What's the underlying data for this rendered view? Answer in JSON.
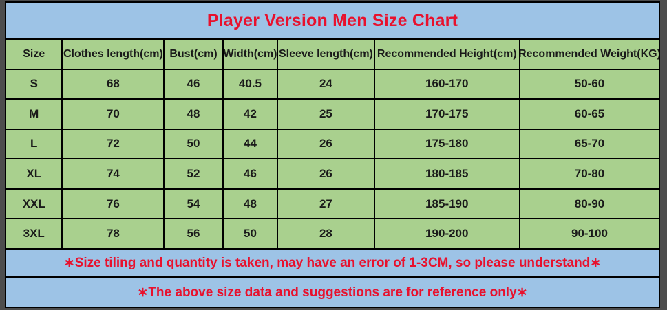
{
  "chart_data": {
    "type": "table",
    "title": "Player Version Men Size Chart",
    "columns": [
      "Size",
      "Clothes length(cm)",
      "Bust(cm)",
      "Width(cm)",
      "Sleeve length(cm)",
      "Recommended Height(cm)",
      "Recommended Weight(KG)"
    ],
    "rows": [
      [
        "S",
        "68",
        "46",
        "40.5",
        "24",
        "160-170",
        "50-60"
      ],
      [
        "M",
        "70",
        "48",
        "42",
        "25",
        "170-175",
        "60-65"
      ],
      [
        "L",
        "72",
        "50",
        "44",
        "26",
        "175-180",
        "65-70"
      ],
      [
        "XL",
        "74",
        "52",
        "46",
        "26",
        "180-185",
        "70-80"
      ],
      [
        "XXL",
        "76",
        "54",
        "48",
        "27",
        "185-190",
        "80-90"
      ],
      [
        "3XL",
        "78",
        "56",
        "50",
        "28",
        "190-200",
        "90-100"
      ]
    ],
    "notes": [
      "∗Size tiling and quantity is taken, may have an error of 1-3CM, so please understand∗",
      "∗The above size data and suggestions are for reference only∗"
    ],
    "layout_hints": {
      "grid": "on",
      "title_position": "top-center",
      "notes_position": "bottom-center"
    }
  },
  "colors": {
    "title_band_bg": "#9dc3e6",
    "cell_bg": "#a9d08e",
    "note_band_bg": "#9dc3e6",
    "accent_text_red": "#e8112d",
    "table_text": "#1a1a1a",
    "grid_border": "#000000",
    "outer_frame": "#4d4d4d"
  }
}
